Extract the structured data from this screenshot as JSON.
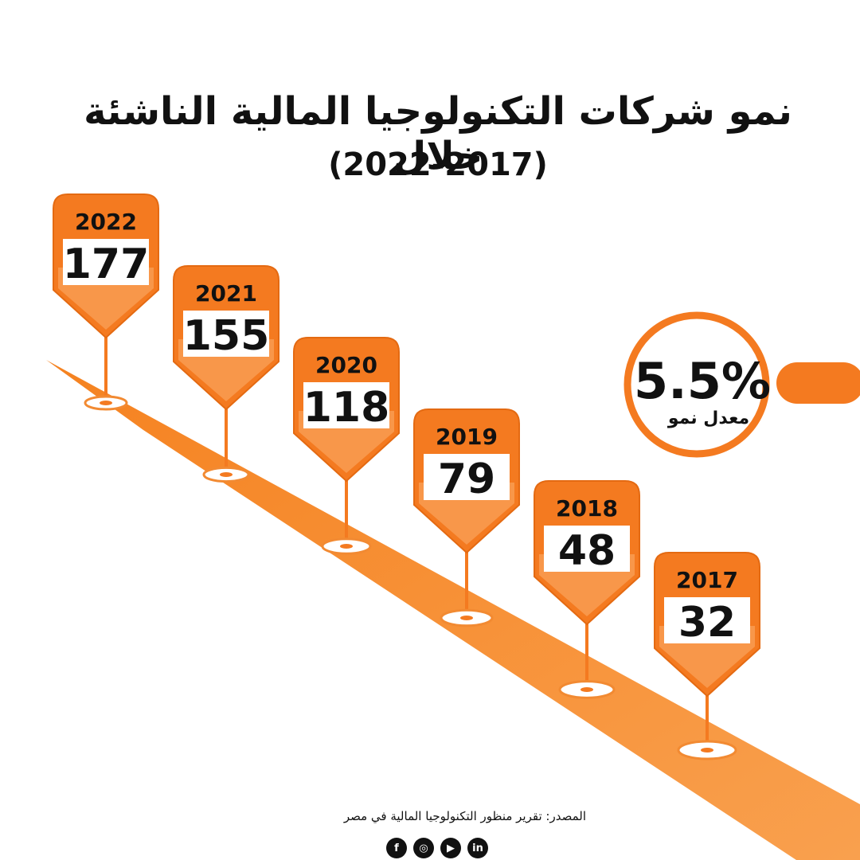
{
  "title": {
    "line1": "نمو شركات التكنولوجيا المالية الناشئة خلال",
    "line2": "(2022-2017)"
  },
  "chart_data": {
    "type": "bar",
    "title": "نمو شركات التكنولوجيا المالية الناشئة خلال (2022-2017)",
    "categories": [
      "2022",
      "2021",
      "2020",
      "2019",
      "2018",
      "2017"
    ],
    "values": [
      177,
      155,
      118,
      79,
      48,
      32
    ],
    "xlabel": "",
    "ylabel": ""
  },
  "growth": {
    "value": "5.5%",
    "label": "معدل نمو"
  },
  "source": "المصدر: تقرير منظور التكنولوجيا المالية في مصر",
  "social_icons": [
    "facebook-icon",
    "instagram-icon",
    "youtube-icon",
    "linkedin-icon"
  ],
  "colors": {
    "orange": "#F47A20",
    "light_orange": "#F99A4A",
    "road": "#F58A2E",
    "text": "#111111"
  }
}
